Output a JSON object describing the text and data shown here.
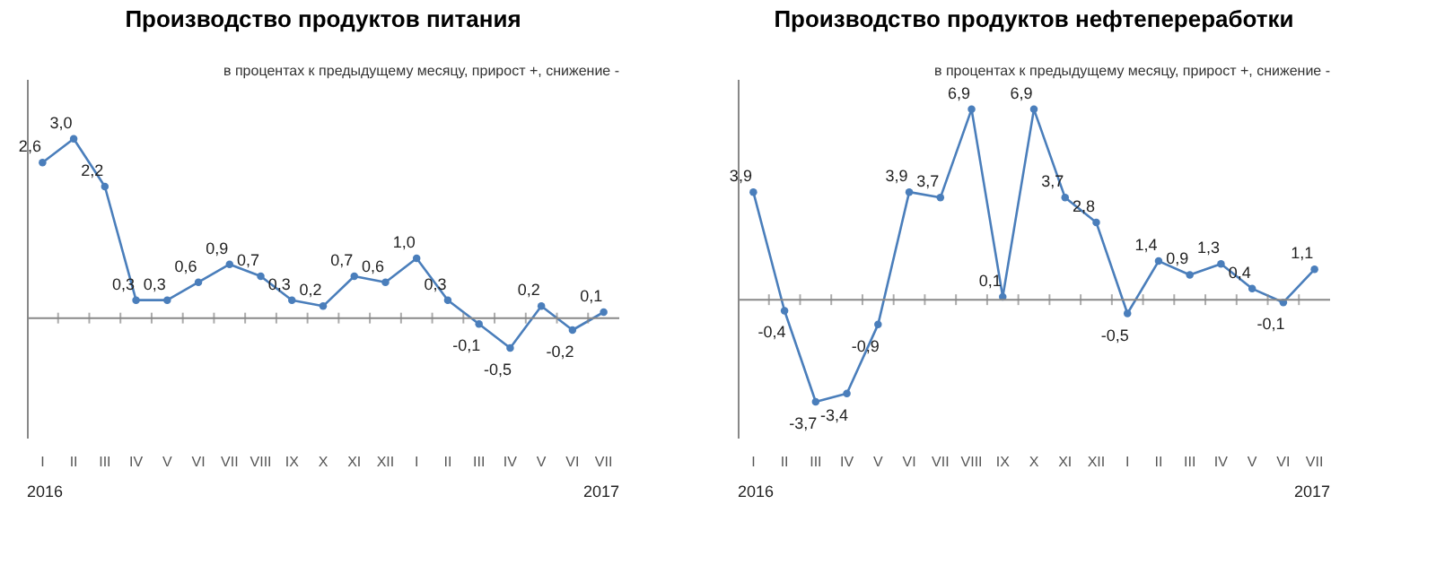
{
  "chart_data": [
    {
      "type": "line",
      "title": "Производство продуктов питания",
      "subtitle": "в процентах к предыдущему месяцу, прирост +, снижение -",
      "categories": [
        "I",
        "II",
        "III",
        "IV",
        "V",
        "VI",
        "VII",
        "VIII",
        "IX",
        "X",
        "XI",
        "XII",
        "I",
        "II",
        "III",
        "IV",
        "V",
        "VI",
        "VII"
      ],
      "series": [
        {
          "color": "#4a7ebb",
          "values": [
            2.6,
            3.0,
            2.2,
            0.3,
            0.3,
            0.6,
            0.9,
            0.7,
            0.3,
            0.2,
            0.7,
            0.6,
            1.0,
            0.3,
            -0.1,
            -0.5,
            0.2,
            -0.2,
            0.1
          ],
          "value_labels": [
            "2,6",
            "3,0",
            "2,2",
            "0,3",
            "0,3",
            "0,6",
            "0,9",
            "0,7",
            "0,3",
            "0,2",
            "0,7",
            "0,6",
            "1,0",
            "0,3",
            "-0,1",
            "-0,5",
            "0,2",
            "-0,2",
            "0,1"
          ]
        }
      ],
      "ylim": [
        -2,
        4
      ],
      "tick_labels": "x",
      "marker": "circle",
      "line_style": "solid",
      "grid": false,
      "ref_lines": [
        {
          "axis": "y",
          "value": 0
        }
      ],
      "annotations": [
        "2016",
        "2017"
      ]
    },
    {
      "type": "line",
      "title": "Производство продуктов нефтепереработки",
      "subtitle": "в процентах к предыдущему месяцу, прирост +, снижение -",
      "categories": [
        "I",
        "II",
        "III",
        "IV",
        "V",
        "VI",
        "VII",
        "VIII",
        "IX",
        "X",
        "XI",
        "XII",
        "I",
        "II",
        "III",
        "IV",
        "V",
        "VI",
        "VII"
      ],
      "series": [
        {
          "color": "#4a7ebb",
          "values": [
            3.9,
            -0.4,
            -3.7,
            -3.4,
            -0.9,
            3.9,
            3.7,
            6.9,
            0.1,
            6.9,
            3.7,
            2.8,
            -0.5,
            1.4,
            0.9,
            1.3,
            0.4,
            -0.1,
            1.1
          ],
          "value_labels": [
            "3,9",
            "-0,4",
            "-3,7",
            "-3,4",
            "-0,9",
            "3,9",
            "3,7",
            "6,9",
            "0,1",
            "6,9",
            "3,7",
            "2,8",
            "-0,5",
            "1,4",
            "0,9",
            "1,3",
            "0,4",
            "-0,1",
            "1,1"
          ]
        }
      ],
      "ylim": [
        -5,
        8
      ],
      "tick_labels": "x",
      "marker": "circle",
      "line_style": "solid",
      "grid": false,
      "ref_lines": [
        {
          "axis": "y",
          "value": 0
        }
      ],
      "annotations": [
        "2016",
        "2017"
      ]
    }
  ]
}
